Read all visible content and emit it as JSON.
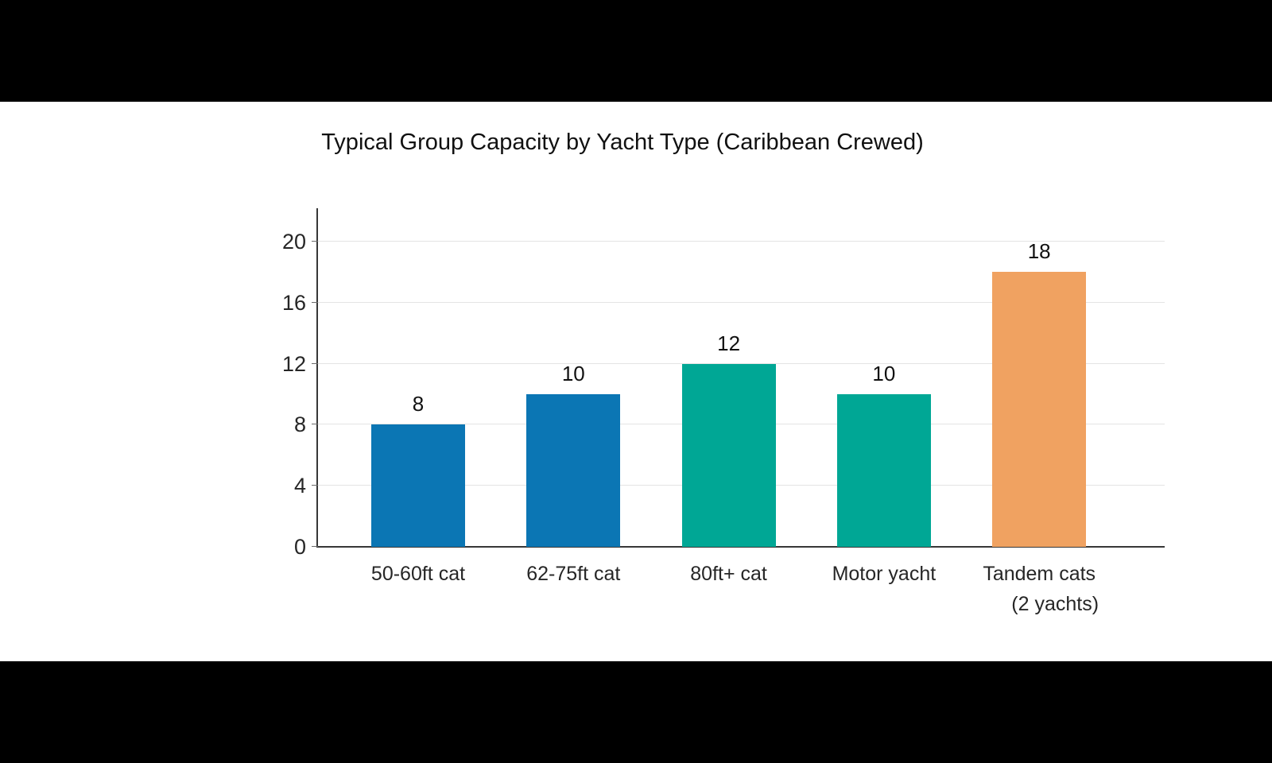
{
  "page": {
    "background": "#000000",
    "canvas_background": "#ffffff"
  },
  "chart_data": {
    "type": "bar",
    "title": "Typical Group Capacity by Yacht Type (Caribbean Crewed)",
    "categories": [
      "50-60ft cat",
      "62-75ft cat",
      "80ft+ cat",
      "Motor yacht",
      "Tandem cats"
    ],
    "category_sublabels": [
      "",
      "",
      "",
      "",
      "(2 yachts)"
    ],
    "values": [
      8,
      10,
      12,
      10,
      18
    ],
    "bar_value_labels": [
      "8",
      "10",
      "12",
      "10",
      "18"
    ],
    "bar_colors": [
      "#0b76b4",
      "#0b76b4",
      "#00a795",
      "#00a795",
      "#f0a261"
    ],
    "yticks": [
      0,
      4,
      8,
      12,
      16,
      20
    ],
    "ytick_labels": [
      "0",
      "4",
      "8",
      "12",
      "16",
      "20"
    ],
    "ylim": [
      0,
      22.2
    ],
    "xlabel": "",
    "ylabel": "",
    "grid": true,
    "legend": false,
    "axis_color": "#373737",
    "grid_color": "#e4e4e4",
    "text_color": "#262626"
  }
}
